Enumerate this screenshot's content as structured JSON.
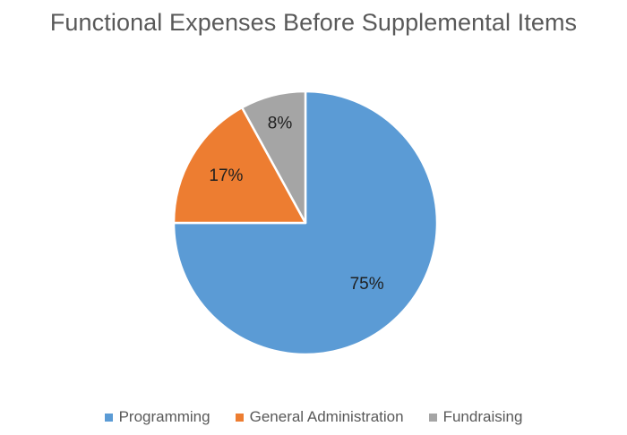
{
  "chart_data": {
    "type": "pie",
    "title": "Functional Expenses Before Supplemental Items",
    "slices": [
      {
        "name": "Programming",
        "value": 75,
        "label": "75%",
        "color": "#5B9BD5"
      },
      {
        "name": "General Administration",
        "value": 17,
        "label": "17%",
        "color": "#ED7D31"
      },
      {
        "name": "Fundraising",
        "value": 8,
        "label": "8%",
        "color": "#A5A5A5"
      }
    ],
    "start": "12 o'clock",
    "direction": "clockwise",
    "legend": "bottom"
  }
}
